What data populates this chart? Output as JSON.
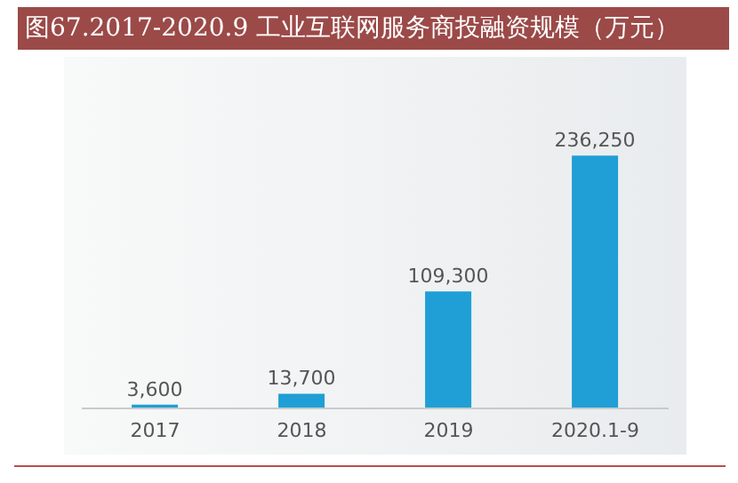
{
  "chart_data": {
    "type": "bar",
    "title": "图67.2017-2020.9 工业互联网服务商投融资规模（万元）",
    "categories": [
      "2017",
      "2018",
      "2019",
      "2020.1-9"
    ],
    "values": [
      3600,
      13700,
      109300,
      236250
    ],
    "value_labels": [
      "3,600",
      "13,700",
      "109,300",
      "236,250"
    ],
    "color": "#1f9fd5",
    "grid": false
  }
}
